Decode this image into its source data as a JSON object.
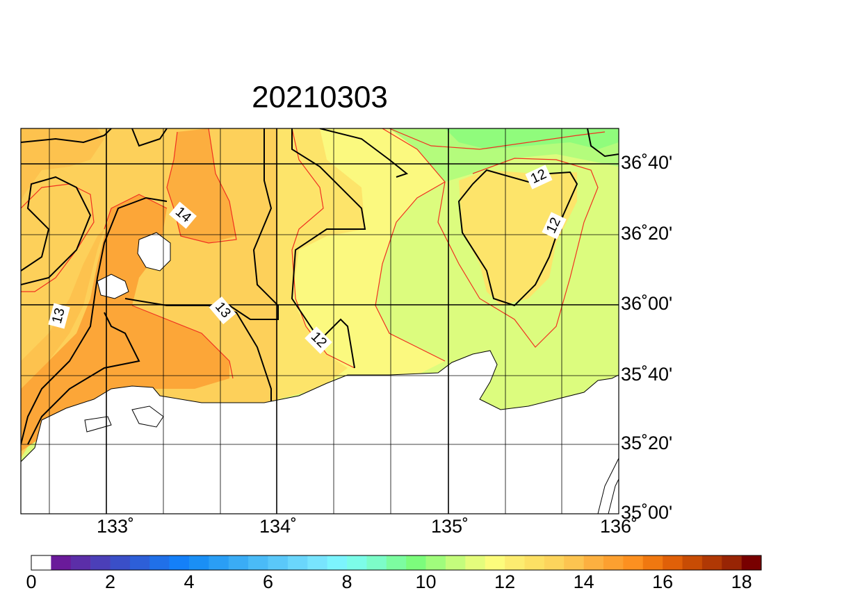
{
  "title": "20210303",
  "lon_labels": [
    "133˚",
    "134˚",
    "135˚",
    "136˚"
  ],
  "lat_labels": [
    "36˚40'",
    "36˚20'",
    "36˚00'",
    "35˚40'",
    "35˚20'",
    "35˚00'"
  ],
  "contour_labels": [
    "14",
    "13",
    "13",
    "12",
    "12",
    "12"
  ],
  "colorbar": {
    "ticks": [
      0,
      2,
      4,
      6,
      8,
      10,
      12,
      14,
      16,
      18
    ],
    "colors": [
      "#ffffff",
      "#6a1a9a",
      "#5b2ea8",
      "#4b3fb8",
      "#3a4fc8",
      "#2d5fd8",
      "#2070e8",
      "#1480f8",
      "#1a8ff5",
      "#2a9ef5",
      "#3aacf5",
      "#4abbf7",
      "#5ac8f9",
      "#6ad6fb",
      "#78e4fd",
      "#7cf4fd",
      "#7cfce8",
      "#7cfcc8",
      "#7cfca0",
      "#7cfc7c",
      "#a0fc7c",
      "#c4fc7c",
      "#e4fc7c",
      "#fcfc7c",
      "#fcec70",
      "#fce064",
      "#fcd45c",
      "#fcc450",
      "#fcb040",
      "#fca030",
      "#fc9020",
      "#f07810",
      "#e06008",
      "#c84c04",
      "#b03804",
      "#982404",
      "#780000"
    ]
  }
}
